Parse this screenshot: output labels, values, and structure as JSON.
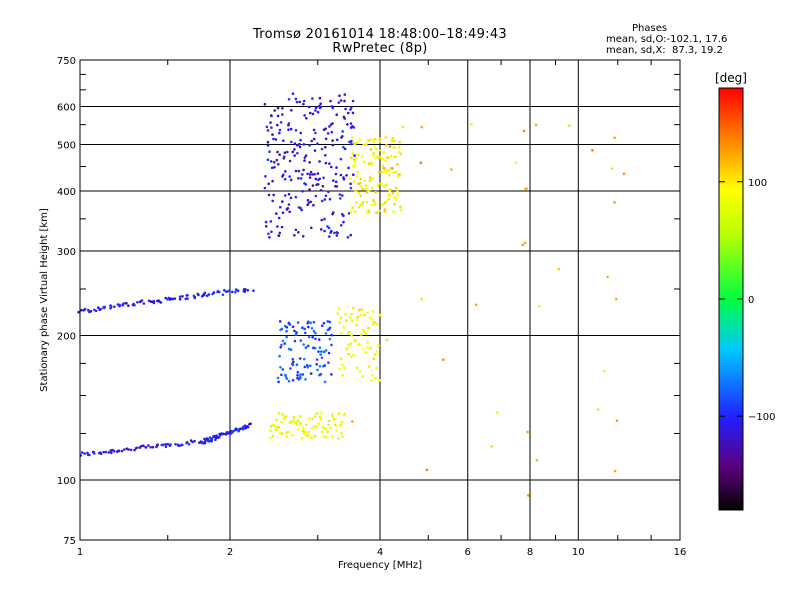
{
  "title": "Tromsø 20161014 18:48:00–18:49:43",
  "subtitle": "RwPretec (8p)",
  "stats": {
    "heading": "Phases",
    "line_o": "mean, sd,O:-102.1, 17.6",
    "line_x": "mean, sd,X:  87.3, 19.2"
  },
  "chart_data": {
    "type": "scatter",
    "xlabel": "Frequency [MHz]",
    "ylabel": "Stationary phase Virtual Height [km]",
    "x_scale": "log",
    "y_scale": "log",
    "xlim": [
      1,
      16
    ],
    "ylim": [
      75,
      750
    ],
    "x_ticks": [
      1,
      2,
      4,
      6,
      8,
      10,
      16
    ],
    "x_tick_labels": [
      "1",
      "2",
      "4",
      "6",
      "8",
      "10",
      "16"
    ],
    "y_ticks": [
      75,
      100,
      200,
      300,
      400,
      500,
      600,
      750
    ],
    "y_tick_labels": [
      "75",
      "100",
      "200",
      "300",
      "400",
      "500",
      "600",
      "750"
    ],
    "grid": true,
    "colorbar": {
      "label": "[deg]",
      "range": [
        -180,
        180
      ],
      "ticks": [
        100,
        0,
        -100
      ],
      "tick_labels": [
        "100",
        "0",
        "−100"
      ],
      "colormap": "rainbow"
    },
    "series": [
      {
        "desc": "low_trace",
        "x_range": [
          1.0,
          1.85
        ],
        "y_start": 113,
        "y_end": 121,
        "phase": -110,
        "n": 70
      },
      {
        "desc": "low_trace_b",
        "x_range": [
          1.75,
          2.2
        ],
        "y_start": 120,
        "y_end": 130,
        "phase": -105,
        "n": 55
      },
      {
        "desc": "F1_trace",
        "x_range": [
          1.0,
          2.2
        ],
        "y_start": 225,
        "y_end": 250,
        "phase": -105,
        "n": 90
      },
      {
        "desc": "F2_O_cusp",
        "x_range": [
          2.35,
          3.55
        ],
        "y_start": 320,
        "y_end": 640,
        "phase": -110,
        "n": 260
      },
      {
        "desc": "F2_X",
        "x_range": [
          3.5,
          4.4
        ],
        "y_start": 360,
        "y_end": 520,
        "phase": 95,
        "n": 150
      },
      {
        "desc": "E_clump",
        "x_range": [
          2.4,
          3.4
        ],
        "y_start": 122,
        "y_end": 138,
        "phase": 85,
        "n": 90
      },
      {
        "desc": "mid_clutter",
        "x_range": [
          2.5,
          3.2
        ],
        "y_start": 160,
        "y_end": 215,
        "phase": -85,
        "n": 110
      },
      {
        "desc": "X_mid",
        "x_range": [
          3.3,
          4.0
        ],
        "y_start": 160,
        "y_end": 230,
        "phase": 90,
        "n": 70
      },
      {
        "desc": "scatter_sparse",
        "x_range": [
          3.5,
          12.5
        ],
        "y_start": 85,
        "y_end": 580,
        "phase": 120,
        "n": 40
      }
    ]
  }
}
